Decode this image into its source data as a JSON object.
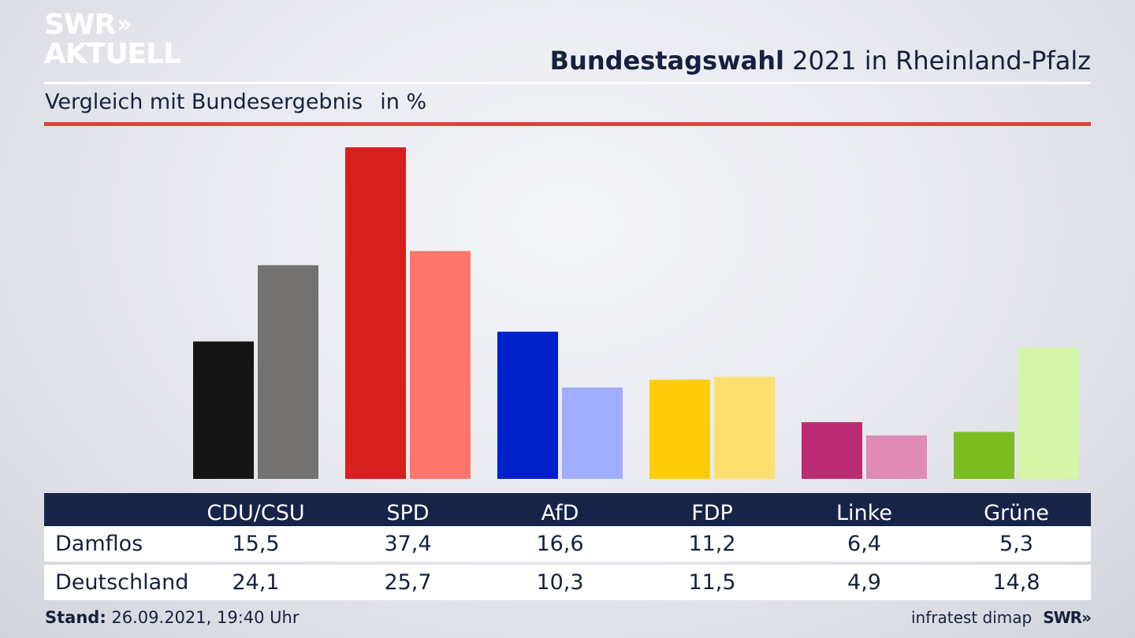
{
  "logo": {
    "line1": "SWR",
    "arrows": "»",
    "line2": "AKTUELL"
  },
  "header": {
    "title_bold": "Bundestagswahl",
    "title_rest": " 2021 in Rheinland-Pfalz"
  },
  "subtitle": {
    "text": "Vergleich mit Bundesergebnis",
    "unit": "in %"
  },
  "chart_data": {
    "type": "bar",
    "categories": [
      "CDU/CSU",
      "SPD",
      "AfD",
      "FDP",
      "Linke",
      "Grüne"
    ],
    "series": [
      {
        "name": "Damflos",
        "values": [
          15.5,
          37.4,
          16.6,
          11.2,
          6.4,
          5.3
        ],
        "colors": [
          "#151515",
          "#d71f20",
          "#0021c9",
          "#ffcc0a",
          "#bb2c75",
          "#7bbd21"
        ]
      },
      {
        "name": "Deutschland",
        "values": [
          24.1,
          25.7,
          10.3,
          11.5,
          4.9,
          14.8
        ],
        "colors": [
          "#737270",
          "#ff766e",
          "#9eadff",
          "#ffe070",
          "#e08ab6",
          "#d5f6a8"
        ]
      }
    ],
    "ylim": [
      0,
      37.4
    ],
    "grid": false,
    "legend": "table-below"
  },
  "footer": {
    "stand_label": "Stand:",
    "stand_value": " 26.09.2021, 19:40 Uhr",
    "source": "infratest dimap",
    "brand": "SWR",
    "brand_arrows": "»"
  }
}
